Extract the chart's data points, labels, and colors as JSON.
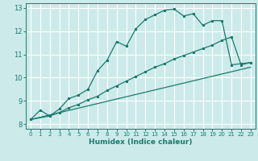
{
  "xlabel": "Humidex (Indice chaleur)",
  "bg_color": "#cceaea",
  "line_color": "#1a7a6e",
  "grid_color": "#ffffff",
  "xlim": [
    -0.5,
    23.5
  ],
  "ylim": [
    7.8,
    13.2
  ],
  "xticks": [
    0,
    1,
    2,
    3,
    4,
    5,
    6,
    7,
    8,
    9,
    10,
    11,
    12,
    13,
    14,
    15,
    16,
    17,
    18,
    19,
    20,
    21,
    22,
    23
  ],
  "yticks": [
    8,
    9,
    10,
    11,
    12,
    13
  ],
  "line1_x": [
    0,
    1,
    2,
    3,
    4,
    5,
    6,
    7,
    8,
    9,
    10,
    11,
    12,
    13,
    14,
    15,
    16,
    17,
    18,
    19,
    20,
    21,
    22,
    23
  ],
  "line1_y": [
    8.2,
    8.6,
    8.35,
    8.65,
    9.1,
    9.25,
    9.5,
    10.3,
    10.75,
    11.55,
    11.35,
    12.1,
    12.5,
    12.7,
    12.9,
    12.95,
    12.65,
    12.75,
    12.25,
    12.45,
    12.45,
    10.55,
    10.6,
    10.65
  ],
  "line2_x": [
    0,
    2,
    3,
    4,
    5,
    6,
    7,
    8,
    9,
    10,
    11,
    12,
    13,
    14,
    15,
    16,
    17,
    18,
    19,
    20,
    21,
    22,
    23
  ],
  "line2_y": [
    8.2,
    8.35,
    8.5,
    8.7,
    8.85,
    9.05,
    9.2,
    9.45,
    9.65,
    9.85,
    10.05,
    10.25,
    10.45,
    10.6,
    10.8,
    10.95,
    11.1,
    11.25,
    11.4,
    11.6,
    11.75,
    10.55,
    10.65
  ],
  "line3_x": [
    0,
    23
  ],
  "line3_y": [
    8.2,
    10.45
  ]
}
